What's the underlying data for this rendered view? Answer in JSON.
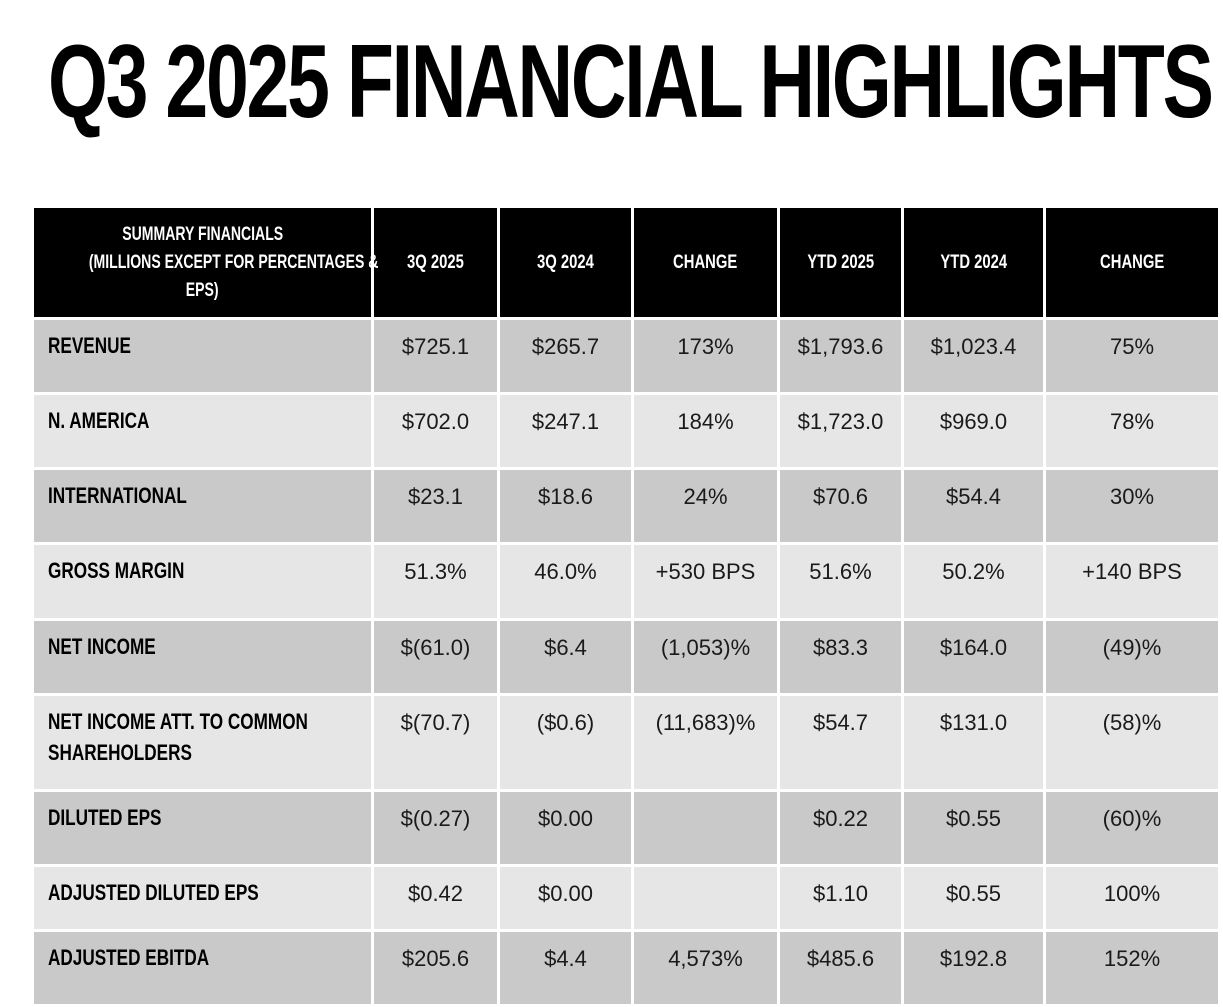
{
  "title": "Q3 2025 FINANCIAL HIGHLIGHTS",
  "colors": {
    "header_bg": "#000000",
    "row_dark": "#c9c9c9",
    "row_light": "#e6e6e6"
  },
  "table": {
    "header_lines": [
      "SUMMARY FINANCIALS",
      "(MILLIONS EXCEPT FOR PERCENTAGES &",
      "EPS)"
    ],
    "columns": [
      "3Q 2025",
      "3Q 2024",
      "CHANGE",
      "YTD 2025",
      "YTD 2024",
      "CHANGE"
    ],
    "rows": [
      {
        "label": [
          "REVENUE"
        ],
        "values": [
          "$725.1",
          "$265.7",
          "173%",
          "$1,793.6",
          "$1,023.4",
          "75%"
        ]
      },
      {
        "label": [
          "N. AMERICA"
        ],
        "values": [
          "$702.0",
          "$247.1",
          "184%",
          "$1,723.0",
          "$969.0",
          "78%"
        ]
      },
      {
        "label": [
          "INTERNATIONAL"
        ],
        "values": [
          "$23.1",
          "$18.6",
          "24%",
          "$70.6",
          "$54.4",
          "30%"
        ]
      },
      {
        "label": [
          "GROSS MARGIN"
        ],
        "values": [
          "51.3%",
          "46.0%",
          "+530 BPS",
          "51.6%",
          "50.2%",
          "+140 BPS"
        ]
      },
      {
        "label": [
          "NET INCOME"
        ],
        "values": [
          "$(61.0)",
          "$6.4",
          "(1,053)%",
          "$83.3",
          "$164.0",
          "(49)%"
        ]
      },
      {
        "label": [
          "NET INCOME ATT. TO COMMON",
          "SHAREHOLDERS"
        ],
        "values": [
          "$(70.7)",
          "($0.6)",
          "(11,683)%",
          "$54.7",
          "$131.0",
          "(58)%"
        ]
      },
      {
        "label": [
          "DILUTED EPS"
        ],
        "values": [
          "$(0.27)",
          "$0.00",
          "",
          "$0.22",
          "$0.55",
          "(60)%"
        ]
      },
      {
        "label": [
          "ADJUSTED DILUTED EPS"
        ],
        "values": [
          "$0.42",
          "$0.00",
          "",
          "$1.10",
          "$0.55",
          "100%"
        ]
      },
      {
        "label": [
          "ADJUSTED EBITDA"
        ],
        "values": [
          "$205.6",
          "$4.4",
          "4,573%",
          "$485.6",
          "$192.8",
          "152%"
        ]
      }
    ]
  }
}
